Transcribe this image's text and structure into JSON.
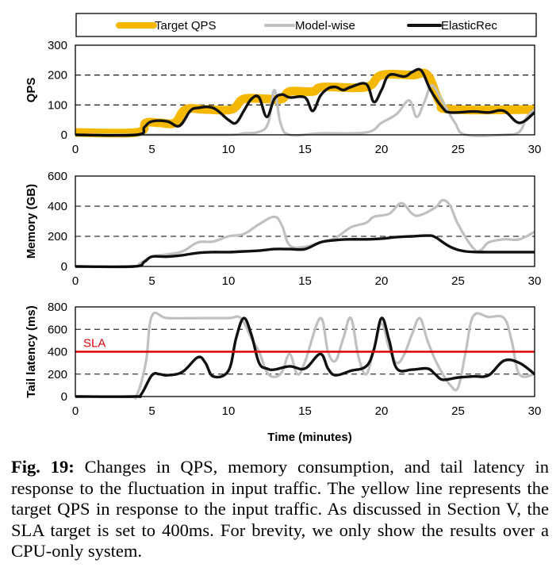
{
  "caption": {
    "label": "Fig. 19:",
    "text": "Changes in QPS, memory consumption, and tail latency in response to the fluctuation in input traffic. The yellow line represents the target QPS in response to the input traffic. As discussed in Section V, the SLA target is set to 400ms. For brevity, we only show the results over a CPU-only system."
  },
  "colors": {
    "target_qps": "#F5B800",
    "model_wise": "#C0C0C0",
    "elasticrec": "#111111",
    "sla": "#E0000B"
  },
  "legend": [
    "Target QPS",
    "Model-wise",
    "ElasticRec"
  ],
  "chart_data": [
    {
      "type": "line",
      "ylabel": "QPS",
      "xlim": [
        0,
        30
      ],
      "ylim": [
        0,
        300
      ],
      "xticks": [
        0,
        5,
        10,
        15,
        20,
        25,
        30
      ],
      "yticks": [
        0,
        100,
        200,
        300
      ],
      "grid": "dashed horizontal",
      "series": [
        {
          "name": "Target QPS",
          "points": [
            [
              0,
              8
            ],
            [
              4,
              8
            ],
            [
              4.6,
              40
            ],
            [
              5.5,
              40
            ],
            [
              6.5,
              40
            ],
            [
              7.2,
              85
            ],
            [
              8.5,
              85
            ],
            [
              10.2,
              85
            ],
            [
              11,
              120
            ],
            [
              12.5,
              120
            ],
            [
              13.5,
              120
            ],
            [
              14,
              145
            ],
            [
              15.5,
              145
            ],
            [
              16.2,
              160
            ],
            [
              19,
              160
            ],
            [
              20,
              200
            ],
            [
              22,
              200
            ],
            [
              23,
              200
            ],
            [
              23.8,
              110
            ],
            [
              24.6,
              85
            ],
            [
              30,
              85
            ]
          ]
        },
        {
          "name": "Model-wise",
          "points": [
            [
              0,
              0
            ],
            [
              4,
              0
            ],
            [
              5,
              0
            ],
            [
              10,
              0
            ],
            [
              11,
              5
            ],
            [
              12,
              10
            ],
            [
              12.6,
              40
            ],
            [
              13,
              150
            ],
            [
              13.4,
              40
            ],
            [
              14,
              0
            ],
            [
              16,
              5
            ],
            [
              19,
              8
            ],
            [
              20,
              40
            ],
            [
              21,
              70
            ],
            [
              21.8,
              115
            ],
            [
              22.3,
              60
            ],
            [
              22.8,
              110
            ],
            [
              23.3,
              165
            ],
            [
              24,
              110
            ],
            [
              24.8,
              40
            ],
            [
              25.5,
              0
            ],
            [
              28,
              0
            ],
            [
              29,
              10
            ],
            [
              29.5,
              60
            ],
            [
              30,
              85
            ]
          ]
        },
        {
          "name": "ElasticRec",
          "points": [
            [
              0,
              0
            ],
            [
              4,
              0
            ],
            [
              4.5,
              25
            ],
            [
              5,
              45
            ],
            [
              6,
              45
            ],
            [
              6.8,
              30
            ],
            [
              7.5,
              80
            ],
            [
              8,
              90
            ],
            [
              9,
              90
            ],
            [
              10,
              50
            ],
            [
              10.5,
              40
            ],
            [
              11,
              80
            ],
            [
              11.5,
              120
            ],
            [
              12,
              125
            ],
            [
              12.5,
              60
            ],
            [
              13,
              120
            ],
            [
              13.5,
              135
            ],
            [
              14,
              125
            ],
            [
              15,
              125
            ],
            [
              15.5,
              80
            ],
            [
              16,
              130
            ],
            [
              16.5,
              155
            ],
            [
              17,
              160
            ],
            [
              17.5,
              150
            ],
            [
              18,
              160
            ],
            [
              19,
              170
            ],
            [
              19.5,
              110
            ],
            [
              20,
              150
            ],
            [
              20.5,
              200
            ],
            [
              21.5,
              195
            ],
            [
              22,
              210
            ],
            [
              22.6,
              215
            ],
            [
              23.2,
              150
            ],
            [
              24,
              90
            ],
            [
              24.5,
              75
            ],
            [
              26,
              78
            ],
            [
              27,
              75
            ],
            [
              28,
              80
            ],
            [
              29,
              40
            ],
            [
              30,
              75
            ]
          ]
        }
      ]
    },
    {
      "type": "line",
      "ylabel": "Memory (GB)",
      "xlim": [
        0,
        30
      ],
      "ylim": [
        0,
        600
      ],
      "xticks": [
        0,
        5,
        10,
        15,
        20,
        25,
        30
      ],
      "yticks": [
        0,
        200,
        400,
        600
      ],
      "grid": "dashed horizontal",
      "series": [
        {
          "name": "Model-wise",
          "points": [
            [
              0,
              0
            ],
            [
              3.8,
              0
            ],
            [
              4.2,
              20
            ],
            [
              5,
              65
            ],
            [
              6,
              80
            ],
            [
              7,
              100
            ],
            [
              8,
              160
            ],
            [
              9,
              165
            ],
            [
              10,
              200
            ],
            [
              11,
              215
            ],
            [
              12,
              280
            ],
            [
              13,
              330
            ],
            [
              13.5,
              270
            ],
            [
              14,
              140
            ],
            [
              15,
              130
            ],
            [
              16,
              160
            ],
            [
              17,
              190
            ],
            [
              18,
              260
            ],
            [
              19,
              290
            ],
            [
              19.5,
              330
            ],
            [
              20.5,
              350
            ],
            [
              21.3,
              420
            ],
            [
              22,
              350
            ],
            [
              22.5,
              340
            ],
            [
              23.5,
              390
            ],
            [
              24,
              440
            ],
            [
              24.5,
              400
            ],
            [
              25,
              280
            ],
            [
              26,
              120
            ],
            [
              26.5,
              110
            ],
            [
              27,
              160
            ],
            [
              28,
              180
            ],
            [
              29,
              180
            ],
            [
              30,
              230
            ]
          ]
        },
        {
          "name": "ElasticRec",
          "points": [
            [
              0,
              0
            ],
            [
              3.8,
              0
            ],
            [
              4.5,
              30
            ],
            [
              5,
              65
            ],
            [
              6,
              65
            ],
            [
              7,
              75
            ],
            [
              8,
              90
            ],
            [
              9,
              95
            ],
            [
              10,
              95
            ],
            [
              11,
              100
            ],
            [
              12,
              105
            ],
            [
              13,
              115
            ],
            [
              14,
              115
            ],
            [
              15,
              115
            ],
            [
              16,
              160
            ],
            [
              17,
              175
            ],
            [
              18,
              180
            ],
            [
              19,
              180
            ],
            [
              20,
              185
            ],
            [
              21,
              195
            ],
            [
              22,
              200
            ],
            [
              23,
              205
            ],
            [
              23.5,
              195
            ],
            [
              24.5,
              130
            ],
            [
              25.5,
              100
            ],
            [
              27,
              95
            ],
            [
              30,
              95
            ]
          ]
        }
      ]
    },
    {
      "type": "line",
      "ylabel": "Tail latency (ms)",
      "xlabel": "Time (minutes)",
      "xlim": [
        0,
        30
      ],
      "ylim": [
        0,
        800
      ],
      "xticks": [
        0,
        5,
        10,
        15,
        20,
        25,
        30
      ],
      "yticks": [
        0,
        200,
        400,
        600,
        800
      ],
      "grid": "dashed horizontal",
      "annotation": {
        "label": "SLA",
        "y": 400
      },
      "series": [
        {
          "name": "Model-wise",
          "points": [
            [
              0,
              0
            ],
            [
              3.5,
              0
            ],
            [
              4,
              10
            ],
            [
              4.6,
              300
            ],
            [
              5,
              720
            ],
            [
              6,
              700
            ],
            [
              8,
              700
            ],
            [
              10,
              700
            ],
            [
              10.8,
              700
            ],
            [
              11.5,
              520
            ],
            [
              12,
              400
            ],
            [
              12.5,
              220
            ],
            [
              13,
              175
            ],
            [
              13.5,
              220
            ],
            [
              14,
              380
            ],
            [
              14.5,
              200
            ],
            [
              15,
              310
            ],
            [
              16,
              700
            ],
            [
              16.5,
              400
            ],
            [
              17,
              320
            ],
            [
              17.5,
              520
            ],
            [
              18,
              700
            ],
            [
              18.5,
              350
            ],
            [
              19,
              200
            ],
            [
              19.5,
              420
            ],
            [
              20,
              650
            ],
            [
              20.5,
              430
            ],
            [
              21,
              300
            ],
            [
              21.5,
              380
            ],
            [
              22,
              560
            ],
            [
              22.5,
              700
            ],
            [
              23,
              500
            ],
            [
              23.5,
              330
            ],
            [
              24,
              200
            ],
            [
              24.5,
              100
            ],
            [
              25,
              80
            ],
            [
              25.5,
              400
            ],
            [
              26,
              720
            ],
            [
              27,
              710
            ],
            [
              28,
              700
            ],
            [
              28.5,
              500
            ],
            [
              29,
              200
            ],
            [
              30,
              200
            ]
          ]
        },
        {
          "name": "ElasticRec",
          "points": [
            [
              0,
              0
            ],
            [
              3.8,
              0
            ],
            [
              4.3,
              20
            ],
            [
              5,
              190
            ],
            [
              5.5,
              200
            ],
            [
              6,
              190
            ],
            [
              7,
              220
            ],
            [
              8,
              350
            ],
            [
              8.5,
              300
            ],
            [
              9,
              180
            ],
            [
              10,
              230
            ],
            [
              10.5,
              520
            ],
            [
              11,
              700
            ],
            [
              11.5,
              550
            ],
            [
              12,
              300
            ],
            [
              12.5,
              250
            ],
            [
              13,
              240
            ],
            [
              14,
              270
            ],
            [
              15,
              250
            ],
            [
              16,
              380
            ],
            [
              16.5,
              250
            ],
            [
              17,
              190
            ],
            [
              18,
              230
            ],
            [
              19,
              270
            ],
            [
              19.5,
              420
            ],
            [
              20,
              700
            ],
            [
              20.5,
              500
            ],
            [
              21,
              250
            ],
            [
              22,
              240
            ],
            [
              23,
              250
            ],
            [
              23.5,
              200
            ],
            [
              24,
              150
            ],
            [
              25,
              170
            ],
            [
              26,
              180
            ],
            [
              27,
              190
            ],
            [
              28,
              320
            ],
            [
              29,
              300
            ],
            [
              30,
              200
            ]
          ]
        },
        {
          "name": "SLA",
          "points": [
            [
              0,
              400
            ],
            [
              30,
              400
            ]
          ]
        }
      ]
    }
  ]
}
